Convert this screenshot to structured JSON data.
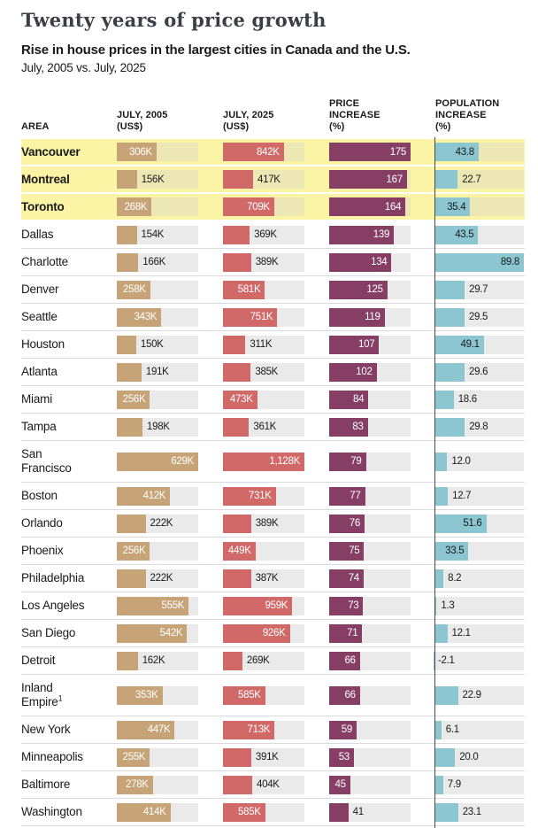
{
  "header": {
    "title": "Twenty years of price growth",
    "subtitle": "Rise in house prices in the largest cities in Canada and the U.S.",
    "period": "July, 2005 vs. July, 2025"
  },
  "table": {
    "columns": [
      {
        "lines": [
          "AREA"
        ]
      },
      {
        "lines": [
          "JULY, 2005",
          "(US$)"
        ]
      },
      {
        "lines": [
          "JULY, 2025",
          "(US$)"
        ]
      },
      {
        "lines": [
          "PRICE",
          "INCREASE",
          "(%)"
        ]
      },
      {
        "lines": [
          "POPULATION",
          "INCREASE",
          "(%)"
        ]
      }
    ]
  },
  "colors": {
    "bar_2005": "#c7a378",
    "bar_2025": "#d16968",
    "bar_increase": "#873e64",
    "bar_population": "#8cc7d1",
    "highlight_row_bg": "#faf4a4",
    "highlight_track_bg": "#ece7b5",
    "track_bg": "#eaeaea",
    "axis_line": "#474747",
    "value_inside_light": "#ffffff",
    "value_dark": "#1a1a1a",
    "title_color": "#3a3f46"
  },
  "chart_data": {
    "type": "bar",
    "title": "Twenty years of price growth",
    "subtitle": "Rise in house prices in the largest cities in Canada and the U.S.",
    "xlabel": "",
    "ylabel": "",
    "axis_max": {
      "price_2005_k": 629,
      "price_2025_k": 1128,
      "price_increase_pct": 175,
      "population_increase_pct": 89.8
    },
    "rows": [
      {
        "area": "Vancouver",
        "canada": true,
        "price_2005_k": 306,
        "price_2005_label": "306K",
        "price_2025_k": 842,
        "price_2025_label": "842K",
        "price_increase_pct": 175,
        "price_increase_label": "175",
        "population_increase_pct": 43.8,
        "population_increase_label": "43.8"
      },
      {
        "area": "Montreal",
        "canada": true,
        "price_2005_k": 156,
        "price_2005_label": "156K",
        "price_2025_k": 417,
        "price_2025_label": "417K",
        "price_increase_pct": 167,
        "price_increase_label": "167",
        "population_increase_pct": 22.7,
        "population_increase_label": "22.7"
      },
      {
        "area": "Toronto",
        "canada": true,
        "price_2005_k": 268,
        "price_2005_label": "268K",
        "price_2025_k": 709,
        "price_2025_label": "709K",
        "price_increase_pct": 164,
        "price_increase_label": "164",
        "population_increase_pct": 35.4,
        "population_increase_label": "35.4"
      },
      {
        "area": "Dallas",
        "canada": false,
        "price_2005_k": 154,
        "price_2005_label": "154K",
        "price_2025_k": 369,
        "price_2025_label": "369K",
        "price_increase_pct": 139,
        "price_increase_label": "139",
        "population_increase_pct": 43.5,
        "population_increase_label": "43.5"
      },
      {
        "area": "Charlotte",
        "canada": false,
        "price_2005_k": 166,
        "price_2005_label": "166K",
        "price_2025_k": 389,
        "price_2025_label": "389K",
        "price_increase_pct": 134,
        "price_increase_label": "134",
        "population_increase_pct": 89.8,
        "population_increase_label": "89.8"
      },
      {
        "area": "Denver",
        "canada": false,
        "price_2005_k": 258,
        "price_2005_label": "258K",
        "price_2025_k": 581,
        "price_2025_label": "581K",
        "price_increase_pct": 125,
        "price_increase_label": "125",
        "population_increase_pct": 29.7,
        "population_increase_label": "29.7"
      },
      {
        "area": "Seattle",
        "canada": false,
        "price_2005_k": 343,
        "price_2005_label": "343K",
        "price_2025_k": 751,
        "price_2025_label": "751K",
        "price_increase_pct": 119,
        "price_increase_label": "119",
        "population_increase_pct": 29.5,
        "population_increase_label": "29.5"
      },
      {
        "area": "Houston",
        "canada": false,
        "price_2005_k": 150,
        "price_2005_label": "150K",
        "price_2025_k": 311,
        "price_2025_label": "311K",
        "price_increase_pct": 107,
        "price_increase_label": "107",
        "population_increase_pct": 49.1,
        "population_increase_label": "49.1"
      },
      {
        "area": "Atlanta",
        "canada": false,
        "price_2005_k": 191,
        "price_2005_label": "191K",
        "price_2025_k": 385,
        "price_2025_label": "385K",
        "price_increase_pct": 102,
        "price_increase_label": "102",
        "population_increase_pct": 29.6,
        "population_increase_label": "29.6"
      },
      {
        "area": "Miami",
        "canada": false,
        "price_2005_k": 256,
        "price_2005_label": "256K",
        "price_2025_k": 473,
        "price_2025_label": "473K",
        "price_increase_pct": 84,
        "price_increase_label": "84",
        "population_increase_pct": 18.6,
        "population_increase_label": "18.6"
      },
      {
        "area": "Tampa",
        "canada": false,
        "price_2005_k": 198,
        "price_2005_label": "198K",
        "price_2025_k": 361,
        "price_2025_label": "361K",
        "price_increase_pct": 83,
        "price_increase_label": "83",
        "population_increase_pct": 29.8,
        "population_increase_label": "29.8"
      },
      {
        "area": "San Francisco",
        "canada": false,
        "tall": true,
        "price_2005_k": 629,
        "price_2005_label": "629K",
        "price_2025_k": 1128,
        "price_2025_label": "1,128K",
        "price_increase_pct": 79,
        "price_increase_label": "79",
        "population_increase_pct": 12.0,
        "population_increase_label": "12.0"
      },
      {
        "area": "Boston",
        "canada": false,
        "price_2005_k": 412,
        "price_2005_label": "412K",
        "price_2025_k": 731,
        "price_2025_label": "731K",
        "price_increase_pct": 77,
        "price_increase_label": "77",
        "population_increase_pct": 12.7,
        "population_increase_label": "12.7"
      },
      {
        "area": "Orlando",
        "canada": false,
        "price_2005_k": 222,
        "price_2005_label": "222K",
        "price_2025_k": 389,
        "price_2025_label": "389K",
        "price_increase_pct": 76,
        "price_increase_label": "76",
        "population_increase_pct": 51.6,
        "population_increase_label": "51.6"
      },
      {
        "area": "Phoenix",
        "canada": false,
        "price_2005_k": 256,
        "price_2005_label": "256K",
        "price_2025_k": 449,
        "price_2025_label": "449K",
        "price_increase_pct": 75,
        "price_increase_label": "75",
        "population_increase_pct": 33.5,
        "population_increase_label": "33.5"
      },
      {
        "area": "Philadelphia",
        "canada": false,
        "price_2005_k": 222,
        "price_2005_label": "222K",
        "price_2025_k": 387,
        "price_2025_label": "387K",
        "price_increase_pct": 74,
        "price_increase_label": "74",
        "population_increase_pct": 8.2,
        "population_increase_label": "8.2"
      },
      {
        "area": "Los Angeles",
        "canada": false,
        "price_2005_k": 555,
        "price_2005_label": "555K",
        "price_2025_k": 959,
        "price_2025_label": "959K",
        "price_increase_pct": 73,
        "price_increase_label": "73",
        "population_increase_pct": 1.3,
        "population_increase_label": "1.3"
      },
      {
        "area": "San Diego",
        "canada": false,
        "price_2005_k": 542,
        "price_2005_label": "542K",
        "price_2025_k": 926,
        "price_2025_label": "926K",
        "price_increase_pct": 71,
        "price_increase_label": "71",
        "population_increase_pct": 12.1,
        "population_increase_label": "12.1"
      },
      {
        "area": "Detroit",
        "canada": false,
        "price_2005_k": 162,
        "price_2005_label": "162K",
        "price_2025_k": 269,
        "price_2025_label": "269K",
        "price_increase_pct": 66,
        "price_increase_label": "66",
        "population_increase_pct": -2.1,
        "population_increase_label": "-2.1"
      },
      {
        "area": "Inland Empire",
        "area_sup": "1",
        "canada": false,
        "tall": true,
        "price_2005_k": 353,
        "price_2005_label": "353K",
        "price_2025_k": 585,
        "price_2025_label": "585K",
        "price_increase_pct": 66,
        "price_increase_label": "66",
        "population_increase_pct": 22.9,
        "population_increase_label": "22.9"
      },
      {
        "area": "New York",
        "canada": false,
        "price_2005_k": 447,
        "price_2005_label": "447K",
        "price_2025_k": 713,
        "price_2025_label": "713K",
        "price_increase_pct": 59,
        "price_increase_label": "59",
        "population_increase_pct": 6.1,
        "population_increase_label": "6.1"
      },
      {
        "area": "Minneapolis",
        "canada": false,
        "price_2005_k": 255,
        "price_2005_label": "255K",
        "price_2025_k": 391,
        "price_2025_label": "391K",
        "price_increase_pct": 53,
        "price_increase_label": "53",
        "population_increase_pct": 20.0,
        "population_increase_label": "20.0"
      },
      {
        "area": "Baltimore",
        "canada": false,
        "price_2005_k": 278,
        "price_2005_label": "278K",
        "price_2025_k": 404,
        "price_2025_label": "404K",
        "price_increase_pct": 45,
        "price_increase_label": "45",
        "population_increase_pct": 7.9,
        "population_increase_label": "7.9"
      },
      {
        "area": "Washington",
        "canada": false,
        "price_2005_k": 414,
        "price_2005_label": "414K",
        "price_2025_k": 585,
        "price_2025_label": "585K",
        "price_increase_pct": 41,
        "price_increase_label": "41",
        "population_increase_pct": 23.1,
        "population_increase_label": "23.1"
      }
    ]
  }
}
